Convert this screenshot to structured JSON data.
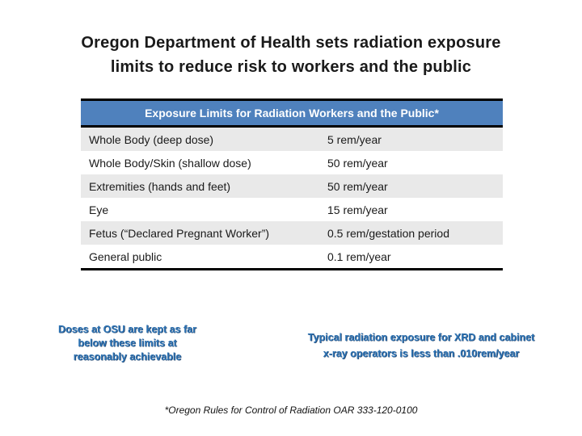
{
  "slide": {
    "title_lines": [
      "Oregon Department of Health sets radiation exposure",
      "limits to reduce risk to workers and the public"
    ]
  },
  "table": {
    "header": "Exposure Limits for Radiation Workers and the Public*",
    "rows": [
      {
        "label": "Whole Body (deep dose)",
        "value": "5 rem/year"
      },
      {
        "label": "Whole Body/Skin (shallow dose)",
        "value": "50 rem/year"
      },
      {
        "label": "Extremities (hands and feet)",
        "value": "50 rem/year"
      },
      {
        "label": "Eye",
        "value": "15 rem/year"
      },
      {
        "label": "Fetus (“Declared Pregnant Worker”)",
        "value": "0.5 rem/gestation period"
      },
      {
        "label": "General public",
        "value": "0.1 rem/year"
      }
    ]
  },
  "notes": {
    "left_lines": [
      "Doses at OSU are kept as far",
      "below these limits at",
      "reasonably achievable"
    ],
    "right_lines": [
      "Typical radiation exposure for XRD and cabinet",
      "x-ray operators is less than .010rem/year"
    ]
  },
  "footnote": "*Oregon Rules for Control of Radiation OAR 333-120-0100",
  "colors": {
    "table_header_bg": "#4f81bd",
    "table_row_alt_bg": "#e9e9e9",
    "table_border": "#000000",
    "note_text": "#2e74b5",
    "title_text": "#1a1a1a"
  }
}
